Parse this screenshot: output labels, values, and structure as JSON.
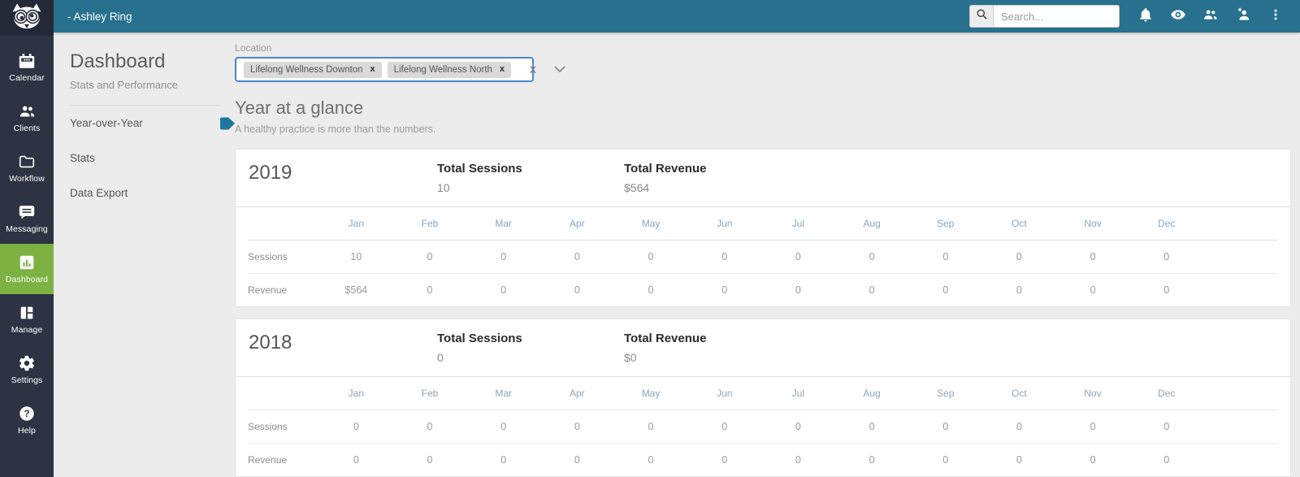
{
  "colors": {
    "topbar_teal": "#27718e",
    "sidebar_navy": "#2d3343",
    "active_green": "#7db242",
    "select_border_blue": "#4a86d2",
    "marker_teal": "#1f7899"
  },
  "topbar": {
    "user": "- Ashley Ring",
    "search": {
      "placeholder": "Search...",
      "icon": "search-icon"
    },
    "icons": [
      "bell-icon",
      "eye-icon",
      "people-icon",
      "person-add-icon",
      "kebab-menu-icon"
    ]
  },
  "sidebar": {
    "logo_icon": "owl-logo",
    "items": [
      {
        "label": "Calendar",
        "icon": "calendar-icon",
        "active": false
      },
      {
        "label": "Clients",
        "icon": "clients-icon",
        "active": false
      },
      {
        "label": "Workflow",
        "icon": "folder-icon",
        "active": false
      },
      {
        "label": "Messaging",
        "icon": "message-bubble-icon",
        "active": false
      },
      {
        "label": "Dashboard",
        "icon": "bar-chart-icon",
        "active": true
      },
      {
        "label": "Manage",
        "icon": "layout-icon",
        "active": false
      },
      {
        "label": "Settings",
        "icon": "gear-icon",
        "active": false
      },
      {
        "label": "Help",
        "icon": "question-icon",
        "active": false
      }
    ]
  },
  "subnav": {
    "title": "Dashboard",
    "subtitle": "Stats and Performance",
    "items": [
      {
        "label": "Year-over-Year",
        "active": true
      },
      {
        "label": "Stats",
        "active": false
      },
      {
        "label": "Data Export",
        "active": false
      }
    ]
  },
  "filters": {
    "label": "Location",
    "selected": [
      "Lifelong Wellness Downton",
      "Lifelong Wellness North"
    ],
    "remove_icon": "x",
    "clear_icon": "x"
  },
  "page": {
    "title": "Year at a glance",
    "subtitle": "A healthy practice is more than the numbers."
  },
  "years": [
    {
      "year": "2019",
      "total_sessions_label": "Total Sessions",
      "total_sessions": "10",
      "total_revenue_label": "Total Revenue",
      "total_revenue": "$564",
      "months": [
        "Jan",
        "Feb",
        "Mar",
        "Apr",
        "May",
        "Jun",
        "Jul",
        "Aug",
        "Sep",
        "Oct",
        "Nov",
        "Dec"
      ],
      "rows": [
        {
          "label": "Sessions",
          "values": [
            "10",
            "0",
            "0",
            "0",
            "0",
            "0",
            "0",
            "0",
            "0",
            "0",
            "0",
            "0"
          ]
        },
        {
          "label": "Revenue",
          "values": [
            "$564",
            "0",
            "0",
            "0",
            "0",
            "0",
            "0",
            "0",
            "0",
            "0",
            "0",
            "0"
          ]
        }
      ]
    },
    {
      "year": "2018",
      "total_sessions_label": "Total Sessions",
      "total_sessions": "0",
      "total_revenue_label": "Total Revenue",
      "total_revenue": "$0",
      "months": [
        "Jan",
        "Feb",
        "Mar",
        "Apr",
        "May",
        "Jun",
        "Jul",
        "Aug",
        "Sep",
        "Oct",
        "Nov",
        "Dec"
      ],
      "rows": [
        {
          "label": "Sessions",
          "values": [
            "0",
            "0",
            "0",
            "0",
            "0",
            "0",
            "0",
            "0",
            "0",
            "0",
            "0",
            "0"
          ]
        },
        {
          "label": "Revenue",
          "values": [
            "0",
            "0",
            "0",
            "0",
            "0",
            "0",
            "0",
            "0",
            "0",
            "0",
            "0",
            "0"
          ]
        }
      ]
    }
  ]
}
